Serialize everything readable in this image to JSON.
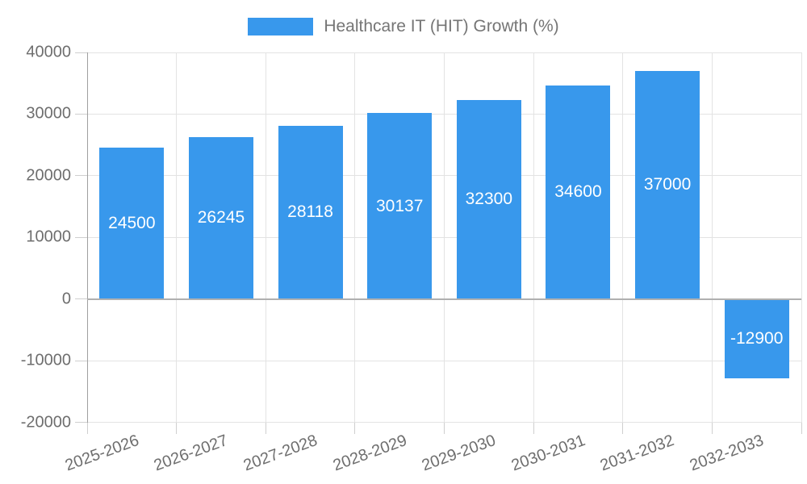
{
  "chart_data": {
    "type": "bar",
    "title": "",
    "legend": {
      "label": "Healthcare IT (HIT) Growth (%)",
      "position": "top"
    },
    "categories": [
      "2025-2026",
      "2026-2027",
      "2027-2028",
      "2028-2029",
      "2029-2030",
      "2030-2031",
      "2031-2032",
      "2032-2033"
    ],
    "values": [
      24500,
      26245,
      28118,
      30137,
      32300,
      34600,
      37000,
      -12900
    ],
    "bar_value_labels": [
      "24500",
      "26245",
      "28118",
      "30137",
      "32300",
      "34600",
      "37000",
      "-12900"
    ],
    "xlabel": "",
    "ylabel": "",
    "ylim": [
      -20000,
      40000
    ],
    "yticks": [
      40000,
      30000,
      20000,
      10000,
      0,
      -10000,
      -20000
    ],
    "grid": true,
    "x_label_rotation_deg": -20,
    "colors": {
      "bar": "#3898EC",
      "grid_line": "#E3E3E3",
      "zero_line": "#B0B0B0",
      "axis_line": "#A0A0A0",
      "tick_mark": "#CFCFCF",
      "axis_text": "#6E6E6E",
      "legend_text": "#757575",
      "bar_label_text": "#FFFFFF",
      "background": "#FFFFFF"
    }
  }
}
